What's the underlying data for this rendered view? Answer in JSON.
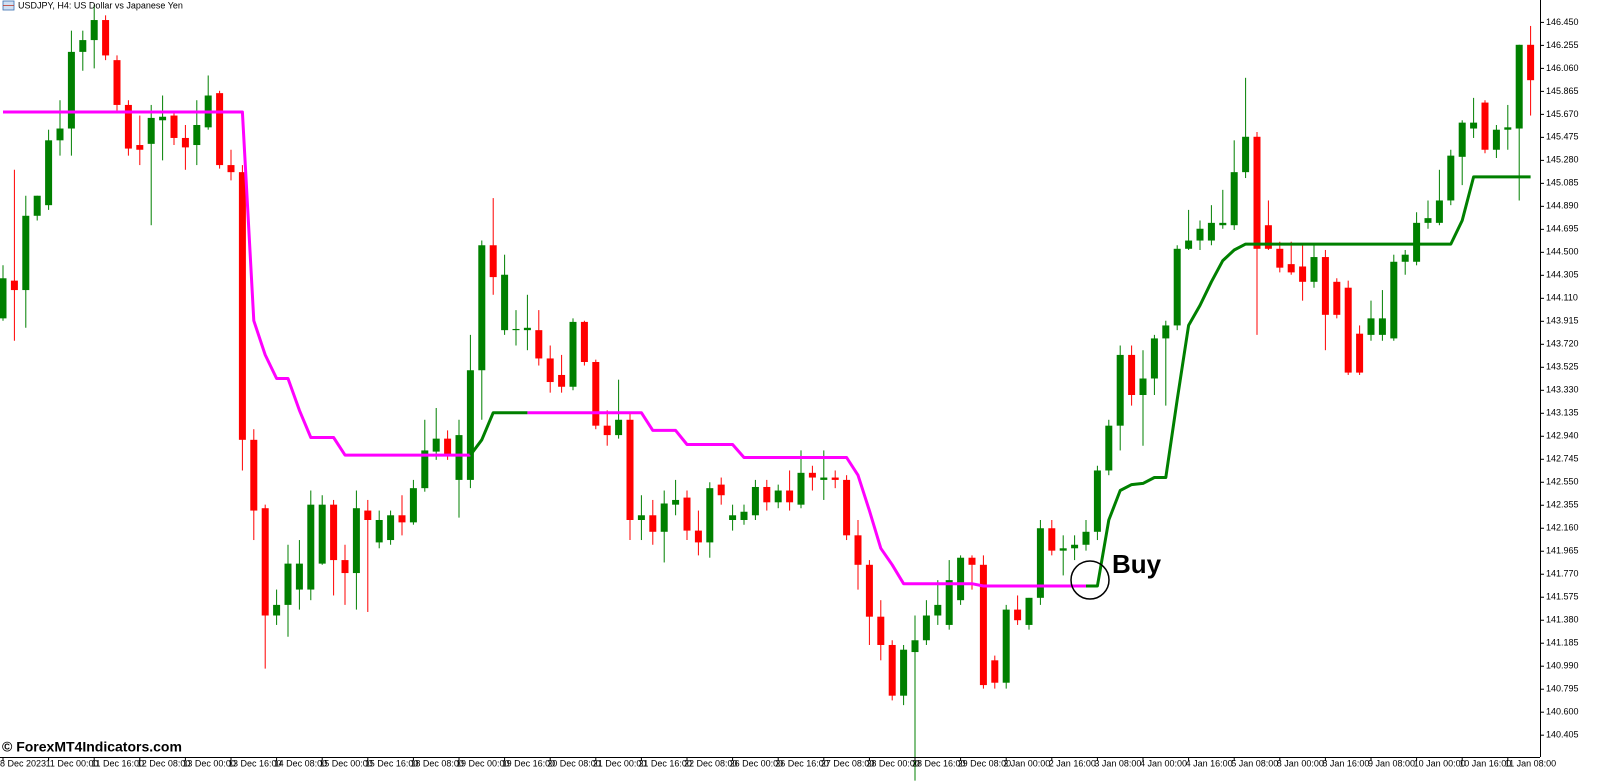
{
  "chart_data": {
    "type": "candlestick",
    "title": "USDJPY, H4:  US Dollar vs Japanese Yen",
    "watermark": "© ForexMT4Indicators.com",
    "annotation": "Buy",
    "up_color": "#008000",
    "down_color": "#ff0000",
    "ylim": [
      140.22,
      146.64
    ],
    "yticks": [
      {
        "value": 146.45,
        "label": "146.450"
      },
      146.255,
      {
        "value": 146.06,
        "label": "146.060"
      },
      145.865,
      {
        "value": 145.67,
        "label": "145.670"
      },
      145.475,
      {
        "value": 145.28,
        "label": "145.280"
      },
      145.085,
      {
        "value": 144.89,
        "label": "144.890"
      },
      144.695,
      {
        "value": 144.5,
        "label": "144.500"
      },
      144.305,
      {
        "value": 144.11,
        "label": "144.110"
      },
      143.915,
      {
        "value": 143.72,
        "label": "143.720"
      },
      143.525,
      {
        "value": 143.33,
        "label": "143.330"
      },
      143.135,
      {
        "value": 142.94,
        "label": "142.940"
      },
      142.745,
      {
        "value": 142.55,
        "label": "142.550"
      },
      142.355,
      {
        "value": 142.16,
        "label": "142.160"
      },
      141.965,
      {
        "value": 141.77,
        "label": "141.770"
      },
      141.575,
      {
        "value": 141.38,
        "label": "141.380"
      },
      141.185,
      {
        "value": 140.99,
        "label": "140.990"
      },
      140.795,
      {
        "value": 140.6,
        "label": "140.600"
      },
      140.405
    ],
    "categories": [
      "8 Dec 2023",
      null,
      null,
      null,
      "11 Dec 00:00",
      null,
      null,
      null,
      "11 Dec 16:00",
      null,
      null,
      null,
      "12 Dec 08:00",
      null,
      null,
      null,
      "13 Dec 00:00",
      null,
      null,
      null,
      "13 Dec 16:00",
      null,
      null,
      null,
      "14 Dec 08:00",
      null,
      null,
      null,
      "15 Dec 00:00",
      null,
      null,
      null,
      "15 Dec 16:00",
      null,
      null,
      null,
      "18 Dec 08:00",
      null,
      null,
      null,
      "19 Dec 00:00",
      null,
      null,
      null,
      "19 Dec 16:00",
      null,
      null,
      null,
      "20 Dec 08:00",
      null,
      null,
      null,
      "21 Dec 00:00",
      null,
      null,
      null,
      "21 Dec 16:00",
      null,
      null,
      null,
      "22 Dec 08:00",
      null,
      null,
      null,
      "26 Dec 00:00",
      null,
      null,
      null,
      "26 Dec 16:00",
      null,
      null,
      null,
      "27 Dec 08:00",
      null,
      null,
      null,
      "28 Dec 00:00",
      null,
      null,
      null,
      "28 Dec 16:00",
      null,
      null,
      null,
      "29 Dec 08:00",
      null,
      null,
      null,
      "2 Jan 00:00",
      null,
      null,
      null,
      "2 Jan 16:00",
      null,
      null,
      null,
      "3 Jan 08:00",
      null,
      null,
      null,
      "4 Jan 00:00",
      null,
      null,
      null,
      "4 Jan 16:00",
      null,
      null,
      null,
      "5 Jan 08:00",
      null,
      null,
      null,
      "8 Jan 00:00",
      null,
      null,
      null,
      "8 Jan 16:00",
      null,
      null,
      null,
      "9 Jan 08:00",
      null,
      null,
      null,
      "10 Jan 00:00",
      null,
      null,
      null,
      "10 Jan 16:00",
      null,
      null,
      null,
      "11 Jan 08:00",
      null,
      null
    ],
    "candles": [
      [
        143.94,
        144.39,
        143.92,
        144.28
      ],
      [
        144.26,
        145.2,
        143.75,
        144.18
      ],
      [
        144.18,
        144.98,
        143.86,
        144.81
      ],
      [
        144.81,
        144.98,
        144.77,
        144.98
      ],
      [
        144.9,
        145.54,
        144.86,
        145.45
      ],
      [
        145.45,
        145.79,
        145.32,
        145.55
      ],
      [
        145.55,
        146.38,
        145.32,
        146.2
      ],
      [
        146.2,
        146.38,
        146.04,
        146.3
      ],
      [
        146.3,
        146.6,
        146.06,
        146.47
      ],
      [
        146.47,
        146.51,
        146.13,
        146.17
      ],
      [
        146.13,
        146.17,
        145.69,
        145.75
      ],
      [
        145.75,
        145.79,
        145.32,
        145.38
      ],
      [
        145.41,
        145.66,
        145.24,
        145.37
      ],
      [
        145.42,
        145.75,
        144.73,
        145.64
      ],
      [
        145.62,
        145.83,
        145.28,
        145.65
      ],
      [
        145.66,
        145.69,
        145.41,
        145.47
      ],
      [
        145.47,
        145.58,
        145.2,
        145.39
      ],
      [
        145.41,
        145.79,
        145.24,
        145.58
      ],
      [
        145.56,
        146.0,
        145.54,
        145.83
      ],
      [
        145.85,
        145.87,
        145.21,
        145.24
      ],
      [
        145.24,
        145.37,
        145.11,
        145.18
      ],
      [
        145.18,
        145.24,
        142.65,
        142.91
      ],
      [
        142.91,
        143.0,
        142.06,
        142.31
      ],
      [
        142.33,
        142.36,
        140.97,
        141.42
      ],
      [
        141.42,
        141.64,
        141.34,
        141.51
      ],
      [
        141.51,
        142.02,
        141.24,
        141.86
      ],
      [
        141.64,
        142.06,
        141.47,
        141.86
      ],
      [
        141.64,
        142.48,
        141.55,
        142.36
      ],
      [
        141.86,
        142.44,
        141.85,
        142.36
      ],
      [
        142.36,
        142.4,
        141.59,
        141.89
      ],
      [
        141.89,
        142.02,
        141.51,
        141.78
      ],
      [
        141.78,
        142.48,
        141.47,
        142.33
      ],
      [
        142.31,
        142.4,
        141.45,
        142.23
      ],
      [
        142.04,
        142.31,
        141.99,
        142.23
      ],
      [
        142.06,
        142.31,
        142.02,
        142.27
      ],
      [
        142.27,
        142.44,
        142.1,
        142.21
      ],
      [
        142.21,
        142.57,
        142.19,
        142.5
      ],
      [
        142.5,
        143.08,
        142.47,
        142.82
      ],
      [
        142.81,
        143.18,
        142.74,
        142.92
      ],
      [
        142.92,
        142.99,
        142.74,
        142.78
      ],
      [
        142.57,
        143.08,
        142.25,
        142.95
      ],
      [
        142.57,
        143.8,
        142.5,
        143.5
      ],
      [
        143.5,
        144.6,
        143.08,
        144.56
      ],
      [
        144.56,
        144.96,
        144.14,
        144.29
      ],
      [
        143.84,
        144.48,
        143.8,
        144.31
      ],
      [
        143.84,
        144.01,
        143.71,
        143.85
      ],
      [
        143.84,
        144.14,
        143.67,
        143.86
      ],
      [
        143.84,
        144.01,
        143.54,
        143.6
      ],
      [
        143.6,
        143.71,
        143.31,
        143.4
      ],
      [
        143.46,
        143.63,
        143.31,
        143.36
      ],
      [
        143.36,
        143.94,
        143.33,
        143.91
      ],
      [
        143.91,
        143.92,
        143.54,
        143.57
      ],
      [
        143.57,
        143.59,
        143.0,
        143.03
      ],
      [
        143.03,
        143.16,
        142.86,
        142.95
      ],
      [
        142.95,
        143.42,
        142.92,
        143.08
      ],
      [
        143.08,
        143.14,
        142.06,
        142.23
      ],
      [
        142.23,
        142.44,
        142.06,
        142.27
      ],
      [
        142.27,
        142.4,
        142.02,
        142.13
      ],
      [
        142.13,
        142.48,
        141.87,
        142.37
      ],
      [
        142.36,
        142.57,
        142.27,
        142.4
      ],
      [
        142.42,
        142.48,
        142.06,
        142.14
      ],
      [
        142.14,
        142.31,
        141.93,
        142.04
      ],
      [
        142.04,
        142.55,
        141.91,
        142.5
      ],
      [
        142.53,
        142.59,
        142.36,
        142.44
      ],
      [
        142.23,
        142.36,
        142.14,
        142.27
      ],
      [
        142.23,
        142.36,
        142.19,
        142.3
      ],
      [
        142.27,
        142.57,
        142.23,
        142.51
      ],
      [
        142.51,
        142.57,
        142.31,
        142.38
      ],
      [
        142.38,
        142.53,
        142.33,
        142.48
      ],
      [
        142.48,
        142.65,
        142.31,
        142.38
      ],
      [
        142.36,
        142.82,
        142.33,
        142.63
      ],
      [
        142.63,
        142.69,
        142.48,
        142.59
      ],
      [
        142.57,
        142.82,
        142.4,
        142.59
      ],
      [
        142.59,
        142.65,
        142.5,
        142.57
      ],
      [
        142.57,
        142.61,
        142.06,
        142.1
      ],
      [
        142.1,
        142.23,
        141.64,
        141.85
      ],
      [
        141.85,
        141.89,
        141.17,
        141.41
      ],
      [
        141.41,
        141.55,
        141.04,
        141.17
      ],
      [
        141.17,
        141.21,
        140.7,
        140.74
      ],
      [
        140.74,
        141.17,
        140.66,
        141.13
      ],
      [
        141.11,
        141.42,
        140.02,
        141.21
      ],
      [
        141.21,
        141.55,
        141.17,
        141.42
      ],
      [
        141.42,
        141.72,
        141.34,
        141.51
      ],
      [
        141.34,
        141.89,
        141.3,
        141.72
      ],
      [
        141.55,
        141.93,
        141.51,
        141.91
      ],
      [
        141.91,
        141.93,
        141.64,
        141.85
      ],
      [
        141.85,
        141.93,
        140.8,
        140.83
      ],
      [
        141.04,
        141.08,
        140.8,
        140.85
      ],
      [
        140.85,
        141.51,
        140.8,
        141.47
      ],
      [
        141.47,
        141.59,
        141.34,
        141.38
      ],
      [
        141.34,
        141.57,
        141.3,
        141.57
      ],
      [
        141.57,
        142.23,
        141.51,
        142.16
      ],
      [
        142.16,
        142.23,
        141.93,
        141.97
      ],
      [
        141.97,
        142.1,
        141.76,
        141.99
      ],
      [
        141.99,
        142.1,
        141.89,
        142.02
      ],
      [
        142.02,
        142.23,
        141.97,
        142.13
      ],
      [
        142.13,
        142.69,
        142.06,
        142.65
      ],
      [
        142.65,
        143.08,
        142.61,
        143.03
      ],
      [
        143.03,
        143.71,
        142.82,
        143.63
      ],
      [
        143.63,
        143.71,
        143.2,
        143.29
      ],
      [
        143.29,
        143.67,
        142.86,
        143.43
      ],
      [
        143.43,
        143.8,
        143.29,
        143.77
      ],
      [
        143.77,
        143.92,
        143.2,
        143.88
      ],
      [
        143.88,
        144.56,
        143.84,
        144.53
      ],
      [
        144.53,
        144.86,
        144.52,
        144.6
      ],
      [
        144.6,
        144.77,
        144.52,
        144.7
      ],
      [
        144.6,
        144.9,
        144.56,
        144.75
      ],
      [
        144.73,
        145.03,
        144.7,
        144.75
      ],
      [
        144.73,
        145.45,
        144.69,
        145.18
      ],
      [
        145.18,
        145.98,
        145.13,
        145.48
      ],
      [
        145.48,
        145.52,
        143.8,
        144.53
      ],
      [
        144.73,
        144.94,
        144.52,
        144.53
      ],
      [
        144.53,
        144.59,
        144.33,
        144.37
      ],
      [
        144.4,
        144.59,
        144.31,
        144.33
      ],
      [
        144.38,
        144.56,
        144.09,
        144.25
      ],
      [
        144.25,
        144.56,
        144.2,
        144.46
      ],
      [
        144.46,
        144.52,
        143.67,
        143.97
      ],
      [
        144.25,
        144.28,
        143.94,
        143.97
      ],
      [
        144.2,
        144.26,
        143.46,
        143.48
      ],
      [
        143.81,
        143.88,
        143.46,
        143.48
      ],
      [
        143.8,
        144.09,
        143.75,
        143.94
      ],
      [
        143.8,
        144.18,
        143.75,
        143.94
      ],
      [
        143.77,
        144.48,
        143.75,
        144.42
      ],
      [
        144.42,
        144.52,
        144.31,
        144.48
      ],
      [
        144.42,
        144.84,
        144.39,
        144.75
      ],
      [
        144.75,
        144.94,
        144.7,
        144.79
      ],
      [
        144.75,
        145.2,
        144.73,
        144.94
      ],
      [
        144.94,
        145.37,
        144.9,
        145.32
      ],
      [
        145.31,
        145.62,
        145.07,
        145.6
      ],
      [
        145.55,
        145.81,
        145.47,
        145.6
      ],
      [
        145.77,
        145.79,
        145.34,
        145.37
      ],
      [
        145.37,
        145.58,
        145.3,
        145.54
      ],
      [
        145.54,
        145.75,
        145.37,
        145.56
      ],
      [
        145.55,
        146.26,
        144.94,
        146.26
      ],
      [
        146.26,
        146.42,
        145.66,
        145.96
      ]
    ],
    "series": [
      {
        "color": "#ff00ff",
        "values": [
          145.69,
          145.69,
          145.69,
          145.69,
          145.69,
          145.69,
          145.69,
          145.69,
          145.69,
          145.69,
          145.69,
          145.69,
          145.69,
          145.69,
          145.69,
          145.69,
          145.69,
          145.69,
          145.69,
          145.69,
          145.69,
          145.69,
          143.92,
          143.63,
          143.43,
          143.43,
          143.16,
          142.93,
          142.93,
          142.93,
          142.78,
          142.78,
          142.78,
          142.78,
          142.78,
          142.78,
          142.78,
          142.78,
          142.78,
          142.78,
          142.78,
          142.78,
          null,
          null,
          null,
          null,
          143.14,
          143.14,
          143.14,
          143.14,
          143.14,
          143.14,
          143.14,
          143.14,
          143.14,
          143.14,
          143.14,
          142.99,
          142.99,
          142.99,
          142.87,
          142.87,
          142.87,
          142.87,
          142.87,
          142.76,
          142.76,
          142.76,
          142.76,
          142.76,
          142.76,
          142.76,
          142.76,
          142.76,
          142.76,
          142.61,
          142.31,
          141.99,
          141.85,
          141.69,
          141.69,
          141.69,
          141.69,
          141.69,
          141.69,
          141.69,
          141.67,
          141.67,
          141.67,
          141.67,
          141.67,
          141.67,
          141.67,
          141.67,
          141.67,
          141.67,
          null,
          null,
          null,
          null,
          null,
          null,
          null,
          null,
          null,
          null,
          null,
          null,
          null,
          null,
          null,
          null,
          null,
          null,
          null,
          null,
          null,
          null,
          null,
          null,
          null,
          null,
          null,
          null,
          null,
          null,
          null,
          null,
          null,
          null,
          null,
          null,
          null,
          null,
          null
        ]
      },
      {
        "color": "#008000",
        "values": [
          null,
          null,
          null,
          null,
          null,
          null,
          null,
          null,
          null,
          null,
          null,
          null,
          null,
          null,
          null,
          null,
          null,
          null,
          null,
          null,
          null,
          null,
          null,
          null,
          null,
          null,
          null,
          null,
          null,
          null,
          null,
          null,
          null,
          null,
          null,
          null,
          null,
          null,
          null,
          null,
          null,
          142.78,
          142.91,
          143.14,
          143.14,
          143.14,
          143.14,
          null,
          null,
          null,
          null,
          null,
          null,
          null,
          null,
          null,
          null,
          null,
          null,
          null,
          null,
          null,
          null,
          null,
          null,
          null,
          null,
          null,
          null,
          null,
          null,
          null,
          null,
          null,
          null,
          null,
          null,
          null,
          null,
          null,
          null,
          null,
          null,
          null,
          null,
          null,
          null,
          null,
          null,
          null,
          null,
          null,
          null,
          null,
          null,
          141.67,
          141.67,
          142.23,
          142.48,
          142.53,
          142.54,
          142.59,
          142.59,
          143.25,
          143.88,
          144.05,
          144.25,
          144.43,
          144.52,
          144.57,
          144.57,
          144.57,
          144.57,
          144.57,
          144.57,
          144.57,
          144.57,
          144.57,
          144.57,
          144.57,
          144.57,
          144.57,
          144.57,
          144.57,
          144.57,
          144.57,
          144.57,
          144.57,
          144.77,
          145.14,
          145.14,
          145.14,
          145.14,
          145.14,
          145.14
        ]
      }
    ]
  }
}
